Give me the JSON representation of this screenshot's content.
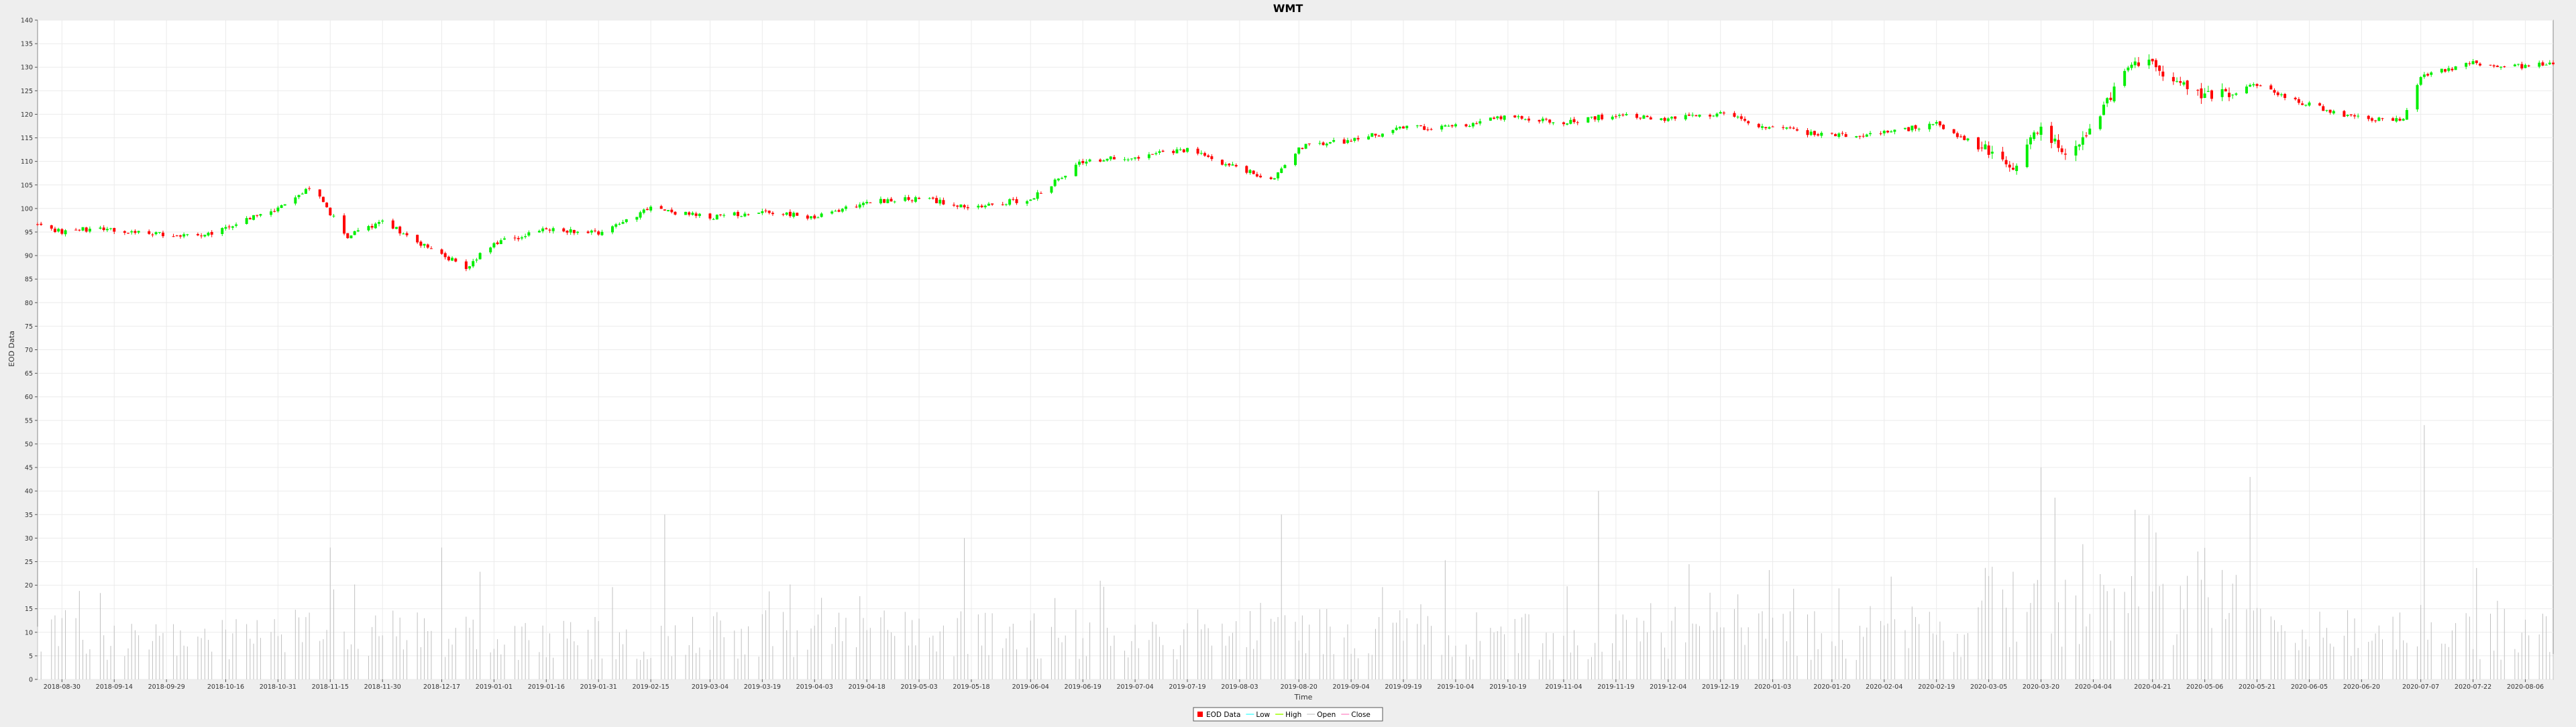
{
  "chart_data": {
    "type": "candlestick",
    "title": "WMT",
    "xlabel": "Time",
    "ylabel": "EOD Data",
    "ylim": [
      0,
      140
    ],
    "yticks": [
      0,
      5,
      10,
      15,
      20,
      25,
      30,
      35,
      40,
      45,
      50,
      55,
      60,
      65,
      70,
      75,
      80,
      85,
      90,
      95,
      100,
      105,
      110,
      115,
      120,
      125,
      130,
      135,
      140
    ],
    "grid": true,
    "legend_position": "bottom-center",
    "x_start": "2018-08-23",
    "x_end": "2020-08-14",
    "xticks": [
      "2018-08-30",
      "2018-09-14",
      "2018-09-29",
      "2018-10-16",
      "2018-10-31",
      "2018-11-15",
      "2018-11-30",
      "2018-12-17",
      "2019-01-01",
      "2019-01-16",
      "2019-01-31",
      "2019-02-15",
      "2019-03-04",
      "2019-03-19",
      "2019-04-03",
      "2019-04-18",
      "2019-05-03",
      "2019-05-18",
      "2019-06-04",
      "2019-06-19",
      "2019-07-04",
      "2019-07-19",
      "2019-08-03",
      "2019-08-20",
      "2019-09-04",
      "2019-09-19",
      "2019-10-04",
      "2019-10-19",
      "2019-11-04",
      "2019-11-19",
      "2019-12-04",
      "2019-12-19",
      "2020-01-03",
      "2020-01-20",
      "2020-02-04",
      "2020-02-19",
      "2020-03-05",
      "2020-03-20",
      "2020-04-04",
      "2020-04-21",
      "2020-05-06",
      "2020-05-21",
      "2020-06-05",
      "2020-06-20",
      "2020-07-07",
      "2020-07-22",
      "2020-08-06"
    ],
    "price_path": [
      {
        "date": "2018-08-23",
        "close": 96.5
      },
      {
        "date": "2018-08-30",
        "close": 95.0
      },
      {
        "date": "2018-09-10",
        "close": 96.0
      },
      {
        "date": "2018-09-14",
        "close": 95.0
      },
      {
        "date": "2018-09-29",
        "close": 94.5
      },
      {
        "date": "2018-10-10",
        "close": 94.0
      },
      {
        "date": "2018-10-16",
        "close": 96.0
      },
      {
        "date": "2018-10-31",
        "close": 100.0
      },
      {
        "date": "2018-11-10",
        "close": 104.5
      },
      {
        "date": "2018-11-15",
        "close": 99.0
      },
      {
        "date": "2018-11-20",
        "close": 94.0
      },
      {
        "date": "2018-11-30",
        "close": 97.5
      },
      {
        "date": "2018-12-10",
        "close": 93.0
      },
      {
        "date": "2018-12-24",
        "close": 87.5
      },
      {
        "date": "2019-01-01",
        "close": 92.5
      },
      {
        "date": "2019-01-16",
        "close": 95.5
      },
      {
        "date": "2019-01-31",
        "close": 95.0
      },
      {
        "date": "2019-02-15",
        "close": 100.0
      },
      {
        "date": "2019-03-04",
        "close": 98.0
      },
      {
        "date": "2019-03-19",
        "close": 99.5
      },
      {
        "date": "2019-04-03",
        "close": 98.0
      },
      {
        "date": "2019-04-18",
        "close": 101.5
      },
      {
        "date": "2019-05-03",
        "close": 102.0
      },
      {
        "date": "2019-05-18",
        "close": 100.5
      },
      {
        "date": "2019-06-04",
        "close": 102.0
      },
      {
        "date": "2019-06-19",
        "close": 110.0
      },
      {
        "date": "2019-07-04",
        "close": 111.0
      },
      {
        "date": "2019-07-19",
        "close": 112.5
      },
      {
        "date": "2019-08-03",
        "close": 108.5
      },
      {
        "date": "2019-08-12",
        "close": 106.0
      },
      {
        "date": "2019-08-20",
        "close": 113.0
      },
      {
        "date": "2019-09-04",
        "close": 114.5
      },
      {
        "date": "2019-09-19",
        "close": 117.0
      },
      {
        "date": "2019-10-04",
        "close": 117.5
      },
      {
        "date": "2019-10-19",
        "close": 119.5
      },
      {
        "date": "2019-11-04",
        "close": 118.0
      },
      {
        "date": "2019-11-19",
        "close": 120.0
      },
      {
        "date": "2019-12-04",
        "close": 119.0
      },
      {
        "date": "2019-12-19",
        "close": 120.0
      },
      {
        "date": "2020-01-03",
        "close": 117.0
      },
      {
        "date": "2020-01-20",
        "close": 115.5
      },
      {
        "date": "2020-02-04",
        "close": 116.0
      },
      {
        "date": "2020-02-19",
        "close": 118.0
      },
      {
        "date": "2020-03-05",
        "close": 112.0
      },
      {
        "date": "2020-03-12",
        "close": 107.0
      },
      {
        "date": "2020-03-20",
        "close": 118.0
      },
      {
        "date": "2020-03-27",
        "close": 111.0
      },
      {
        "date": "2020-04-04",
        "close": 117.0
      },
      {
        "date": "2020-04-14",
        "close": 130.0
      },
      {
        "date": "2020-04-21",
        "close": 130.5
      },
      {
        "date": "2020-05-06",
        "close": 124.0
      },
      {
        "date": "2020-05-21",
        "close": 126.0
      },
      {
        "date": "2020-06-05",
        "close": 122.0
      },
      {
        "date": "2020-06-20",
        "close": 119.0
      },
      {
        "date": "2020-07-02",
        "close": 119.0
      },
      {
        "date": "2020-07-07",
        "close": 128.0
      },
      {
        "date": "2020-07-22",
        "close": 131.0
      },
      {
        "date": "2020-08-06",
        "close": 130.0
      },
      {
        "date": "2020-08-14",
        "close": 131.0
      }
    ],
    "volume_spikes": [
      {
        "date": "2018-11-15",
        "value": 28
      },
      {
        "date": "2018-12-17",
        "value": 28
      },
      {
        "date": "2019-02-19",
        "value": 35
      },
      {
        "date": "2019-05-16",
        "value": 30
      },
      {
        "date": "2019-08-15",
        "value": 35
      },
      {
        "date": "2019-11-14",
        "value": 40
      },
      {
        "date": "2020-03-20",
        "value": 45
      },
      {
        "date": "2020-05-19",
        "value": 43
      },
      {
        "date": "2020-07-08",
        "value": 54
      }
    ],
    "legend": [
      {
        "label": "EOD Data",
        "color": "#ff0000",
        "kind": "box"
      },
      {
        "label": "Low",
        "color": "#55ffff",
        "kind": "line"
      },
      {
        "label": "High",
        "color": "#a0ff00",
        "kind": "line"
      },
      {
        "label": "Open",
        "color": "#d0d0d0",
        "kind": "line"
      },
      {
        "label": "Close",
        "color": "#ff99cc",
        "kind": "line"
      }
    ],
    "colors": {
      "up": "#00ee00",
      "down": "#ff0000",
      "volume": "#c0c0c0",
      "plot_background": "#ffffff",
      "page_background": "#eeeeee"
    }
  }
}
